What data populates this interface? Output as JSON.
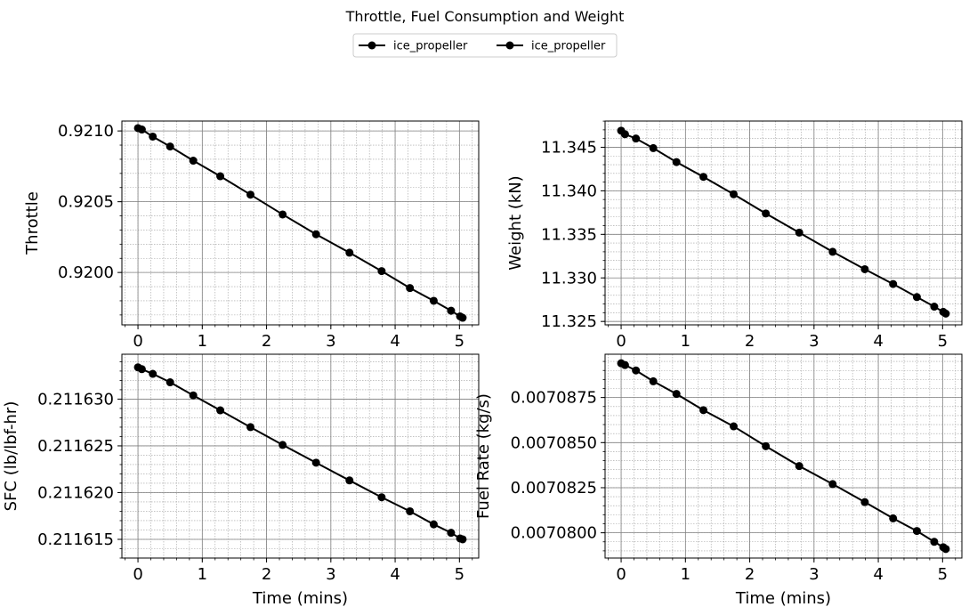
{
  "figure": {
    "title": "Throttle, Fuel Consumption and Weight",
    "legend": [
      "ice_propeller",
      "ice_propeller"
    ],
    "legend_placement": "top-center",
    "line_color": "#000000",
    "major_grid_color": "#808080",
    "minor_grid_color": "#a0a0a0"
  },
  "chart_data": [
    {
      "type": "line",
      "name": "throttle",
      "xlabel": "",
      "ylabel": "Throttle",
      "xlim": [
        -0.25,
        5.3
      ],
      "ylim": [
        0.91963,
        0.92107
      ],
      "xticks": [
        0,
        1,
        2,
        3,
        4,
        5
      ],
      "xtick_labels": [
        "0",
        "1",
        "2",
        "3",
        "4",
        "5"
      ],
      "yticks": [
        0.92,
        0.9205,
        0.921
      ],
      "ytick_labels": [
        "0.9200",
        "0.9205",
        "0.9210"
      ],
      "grid": true,
      "series": [
        {
          "name": "ice_propeller",
          "x": [
            0,
            0.06,
            0.23,
            0.5,
            0.86,
            1.28,
            1.75,
            2.25,
            2.77,
            3.29,
            3.79,
            4.23,
            4.6,
            4.87,
            5.01,
            5.05
          ],
          "y": [
            0.92102,
            0.92101,
            0.92096,
            0.92089,
            0.92079,
            0.92068,
            0.92055,
            0.92041,
            0.92027,
            0.92014,
            0.92001,
            0.91989,
            0.9198,
            0.91973,
            0.91969,
            0.91968
          ]
        }
      ]
    },
    {
      "type": "line",
      "name": "weight",
      "xlabel": "",
      "ylabel": "Weight (kN)",
      "xlim": [
        -0.25,
        5.3
      ],
      "ylim": [
        11.32461,
        11.34801
      ],
      "xticks": [
        0,
        1,
        2,
        3,
        4,
        5
      ],
      "xtick_labels": [
        "0",
        "1",
        "2",
        "3",
        "4",
        "5"
      ],
      "yticks": [
        11.325,
        11.33,
        11.335,
        11.34,
        11.345
      ],
      "ytick_labels": [
        "11.325",
        "11.330",
        "11.335",
        "11.340",
        "11.345"
      ],
      "grid": true,
      "series": [
        {
          "name": "ice_propeller",
          "x": [
            0,
            0.06,
            0.23,
            0.5,
            0.86,
            1.28,
            1.75,
            2.25,
            2.77,
            3.29,
            3.79,
            4.23,
            4.6,
            4.87,
            5.01,
            5.05
          ],
          "y": [
            11.3469,
            11.3465,
            11.346,
            11.3449,
            11.3433,
            11.3416,
            11.3396,
            11.3374,
            11.3352,
            11.333,
            11.331,
            11.3293,
            11.3278,
            11.3267,
            11.3261,
            11.3259
          ]
        }
      ]
    },
    {
      "type": "line",
      "name": "sfc",
      "xlabel": "Time (mins)",
      "ylabel": "SFC (lb/lbf-hr)",
      "xlim": [
        -0.25,
        5.3
      ],
      "ylim": [
        0.211613,
        0.2116348
      ],
      "xticks": [
        0,
        1,
        2,
        3,
        4,
        5
      ],
      "xtick_labels": [
        "0",
        "1",
        "2",
        "3",
        "4",
        "5"
      ],
      "yticks": [
        0.211615,
        0.21162,
        0.211625,
        0.21163
      ],
      "ytick_labels": [
        "0.211615",
        "0.211620",
        "0.211625",
        "0.211630"
      ],
      "grid": true,
      "series": [
        {
          "name": "ice_propeller",
          "x": [
            0,
            0.06,
            0.23,
            0.5,
            0.86,
            1.28,
            1.75,
            2.25,
            2.77,
            3.29,
            3.79,
            4.23,
            4.6,
            4.87,
            5.01,
            5.05
          ],
          "y": [
            0.2116334,
            0.2116332,
            0.2116327,
            0.2116318,
            0.2116304,
            0.2116288,
            0.211627,
            0.2116251,
            0.2116232,
            0.2116213,
            0.2116195,
            0.211618,
            0.2116166,
            0.2116157,
            0.2116151,
            0.211615
          ]
        }
      ]
    },
    {
      "type": "line",
      "name": "fuel-rate",
      "xlabel": "Time (mins)",
      "ylabel": "Fuel Rate (kg/s)",
      "xlim": [
        -0.25,
        5.3
      ],
      "ylim": [
        0.0070786,
        0.0070899
      ],
      "xticks": [
        0,
        1,
        2,
        3,
        4,
        5
      ],
      "xtick_labels": [
        "0",
        "1",
        "2",
        "3",
        "4",
        "5"
      ],
      "yticks": [
        0.00708,
        0.0070825,
        0.007085,
        0.0070875
      ],
      "ytick_labels": [
        "0.0070800",
        "0.0070825",
        "0.0070850",
        "0.0070875"
      ],
      "grid": true,
      "series": [
        {
          "name": "ice_propeller",
          "x": [
            0,
            0.06,
            0.23,
            0.5,
            0.86,
            1.28,
            1.75,
            2.25,
            2.77,
            3.29,
            3.79,
            4.23,
            4.6,
            4.87,
            5.01,
            5.05
          ],
          "y": [
            0.0070894,
            0.0070893,
            0.007089,
            0.0070884,
            0.0070877,
            0.0070868,
            0.0070859,
            0.0070848,
            0.0070837,
            0.0070827,
            0.0070817,
            0.0070808,
            0.0070801,
            0.0070795,
            0.0070792,
            0.0070791
          ]
        }
      ]
    }
  ]
}
